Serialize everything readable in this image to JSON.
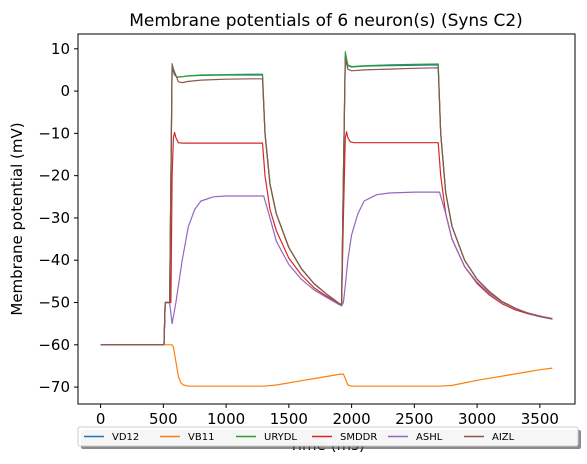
{
  "chart_data": {
    "type": "line",
    "title": "Membrane potentials of 6 neuron(s) (Syns C2)",
    "xlabel": "Time (ms)",
    "ylabel": "Membrane potential (mV)",
    "xlim": [
      -180,
      3780
    ],
    "ylim": [
      -74,
      13.5
    ],
    "xticks": [
      0,
      500,
      1000,
      1500,
      2000,
      2500,
      3000,
      3500
    ],
    "yticks": [
      10,
      0,
      -10,
      -20,
      -30,
      -40,
      -50,
      -60,
      -70
    ],
    "ytick_labels": [
      "10",
      "0",
      "−10",
      "−20",
      "−30",
      "−40",
      "−50",
      "−60",
      "−70"
    ],
    "grid": false,
    "legend": {
      "placement": "bottom, below axes",
      "entries": [
        {
          "name": "VD12",
          "color": "#1f77b4"
        },
        {
          "name": "VB11",
          "color": "#ff7f0e"
        },
        {
          "name": "URYDL",
          "color": "#2ca02c"
        },
        {
          "name": "SMDDR",
          "color": "#d62728"
        },
        {
          "name": "ASHL",
          "color": "#9467bd"
        },
        {
          "name": "AIZL",
          "color": "#8c564b"
        }
      ]
    },
    "series": [
      {
        "name": "VD12",
        "color": "#1f77b4",
        "x": [
          0,
          490,
          500,
          505,
          515,
          550,
          570,
          590,
          610,
          650,
          700,
          800,
          1000,
          1200,
          1290,
          1310,
          1350,
          1400,
          1500,
          1600,
          1700,
          1800,
          1900,
          1920,
          1935,
          1950,
          1970,
          2000,
          2100,
          2300,
          2500,
          2690,
          2710,
          2750,
          2800,
          2900,
          3000,
          3100,
          3200,
          3300,
          3400,
          3500,
          3600
        ],
        "y": [
          -60,
          -60,
          -60,
          -59.8,
          -50,
          -50,
          5.5,
          3.8,
          3.3,
          3.4,
          3.6,
          3.7,
          3.8,
          3.8,
          3.8,
          -10,
          -22,
          -29,
          -37,
          -42,
          -45.5,
          -48,
          -50.2,
          -50.5,
          -20,
          8.2,
          6.0,
          5.7,
          5.9,
          6.0,
          6.1,
          6.2,
          -10,
          -24,
          -32,
          -40,
          -44.5,
          -47.5,
          -49.8,
          -51.3,
          -52.5,
          -53.3,
          -53.9
        ]
      },
      {
        "name": "VB11",
        "color": "#ff7f0e",
        "x": [
          0,
          570,
          580,
          600,
          620,
          640,
          660,
          700,
          800,
          1000,
          1300,
          1400,
          1500,
          1600,
          1700,
          1800,
          1900,
          1935,
          1950,
          1970,
          2000,
          2100,
          2500,
          2700,
          2800,
          2900,
          3000,
          3100,
          3200,
          3300,
          3400,
          3500,
          3600
        ],
        "y": [
          -60,
          -60,
          -60.5,
          -64,
          -67.5,
          -69,
          -69.5,
          -69.8,
          -69.8,
          -69.8,
          -69.8,
          -69.5,
          -69.0,
          -68.5,
          -68.0,
          -67.5,
          -67.0,
          -66.9,
          -68,
          -69.5,
          -69.8,
          -69.8,
          -69.8,
          -69.8,
          -69.6,
          -69.0,
          -68.4,
          -67.9,
          -67.4,
          -66.9,
          -66.4,
          -65.9,
          -65.5
        ]
      },
      {
        "name": "URYDL",
        "color": "#2ca02c",
        "x": [
          0,
          490,
          500,
          505,
          515,
          550,
          570,
          590,
          610,
          650,
          700,
          800,
          1000,
          1200,
          1290,
          1310,
          1350,
          1400,
          1500,
          1600,
          1700,
          1800,
          1900,
          1920,
          1935,
          1950,
          1970,
          2000,
          2100,
          2300,
          2500,
          2690,
          2710,
          2750,
          2800,
          2900,
          3000,
          3100,
          3200,
          3300,
          3400,
          3500,
          3600
        ],
        "y": [
          -60,
          -60,
          -60,
          -59.8,
          -50,
          -50,
          6.5,
          4.0,
          3.3,
          3.4,
          3.6,
          3.8,
          3.9,
          4.0,
          4.0,
          -10,
          -22,
          -29,
          -37,
          -42,
          -45.5,
          -48,
          -50.2,
          -50.5,
          -20,
          9.3,
          6.2,
          5.8,
          6.0,
          6.2,
          6.3,
          6.4,
          -10,
          -24,
          -32,
          -40,
          -44.5,
          -47.5,
          -49.8,
          -51.3,
          -52.5,
          -53.3,
          -53.9
        ]
      },
      {
        "name": "SMDDR",
        "color": "#d62728",
        "x": [
          0,
          490,
          500,
          505,
          515,
          560,
          570,
          580,
          590,
          600,
          620,
          650,
          700,
          800,
          1000,
          1200,
          1290,
          1310,
          1350,
          1400,
          1500,
          1600,
          1700,
          1800,
          1900,
          1920,
          1935,
          1950,
          1960,
          1970,
          1990,
          2020,
          2100,
          2300,
          2500,
          2690,
          2710,
          2750,
          2800,
          2900,
          3000,
          3100,
          3200,
          3300,
          3400,
          3500,
          3600
        ],
        "y": [
          -60,
          -60,
          -60,
          -59.8,
          -50,
          -50,
          -20,
          -11,
          -9.8,
          -11,
          -12.2,
          -12.3,
          -12.3,
          -12.3,
          -12.3,
          -12.3,
          -12.3,
          -20,
          -28,
          -33,
          -39.5,
          -43.5,
          -46.5,
          -48.5,
          -50.3,
          -50.6,
          -30,
          -11,
          -9.6,
          -11,
          -12,
          -12.2,
          -12.2,
          -12.2,
          -12.2,
          -12.2,
          -20,
          -29,
          -35,
          -41.5,
          -45.5,
          -48.3,
          -50.3,
          -51.7,
          -52.6,
          -53.3,
          -53.8
        ]
      },
      {
        "name": "ASHL",
        "color": "#9467bd",
        "x": [
          0,
          490,
          500,
          505,
          515,
          550,
          570,
          600,
          650,
          700,
          750,
          800,
          900,
          1000,
          1200,
          1300,
          1350,
          1400,
          1500,
          1600,
          1700,
          1800,
          1900,
          1920,
          1935,
          1950,
          1970,
          2000,
          2050,
          2100,
          2200,
          2300,
          2500,
          2700,
          2750,
          2800,
          2900,
          3000,
          3100,
          3200,
          3300,
          3400,
          3500,
          3600
        ],
        "y": [
          -60,
          -60,
          -60,
          -59.8,
          -50,
          -50,
          -55,
          -50,
          -40,
          -32,
          -28,
          -26,
          -25,
          -24.8,
          -24.8,
          -24.8,
          -30,
          -35.5,
          -41,
          -44.5,
          -47,
          -48.8,
          -50.5,
          -50.8,
          -50,
          -46,
          -40,
          -34,
          -29,
          -26,
          -24.5,
          -24.1,
          -23.9,
          -23.9,
          -29,
          -35,
          -41.5,
          -45.2,
          -47.9,
          -49.9,
          -51.4,
          -52.4,
          -53.2,
          -53.8
        ]
      },
      {
        "name": "AIZL",
        "color": "#8c564b",
        "x": [
          0,
          490,
          500,
          505,
          515,
          550,
          570,
          590,
          620,
          650,
          700,
          800,
          1000,
          1200,
          1290,
          1310,
          1350,
          1400,
          1500,
          1600,
          1700,
          1800,
          1900,
          1920,
          1935,
          1950,
          1970,
          2000,
          2100,
          2300,
          2500,
          2690,
          2710,
          2750,
          2800,
          2900,
          3000,
          3100,
          3200,
          3300,
          3400,
          3500,
          3600
        ],
        "y": [
          -60,
          -60,
          -60,
          -59.8,
          -50,
          -50,
          6.0,
          4.5,
          2.2,
          2.0,
          2.3,
          2.6,
          2.8,
          2.9,
          2.9,
          -10,
          -22,
          -29,
          -37,
          -42,
          -45.5,
          -48,
          -50.2,
          -50.5,
          -20,
          7.8,
          5.2,
          4.8,
          5.0,
          5.2,
          5.4,
          5.5,
          -10,
          -24,
          -32,
          -40,
          -44.5,
          -47.5,
          -49.8,
          -51.3,
          -52.5,
          -53.3,
          -53.9
        ]
      }
    ]
  }
}
